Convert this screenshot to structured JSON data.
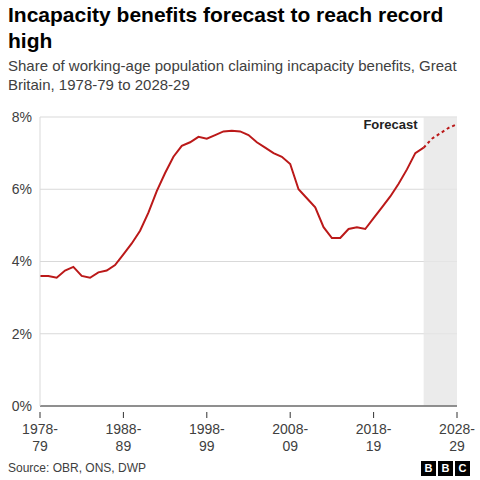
{
  "chart_data": {
    "type": "line",
    "title": "Incapacity benefits forecast to reach record high",
    "subtitle": "Share of working-age population claiming incapacity benefits, Great Britain, 1978-79 to 2028-29",
    "source": "Source: OBR, ONS, DWP",
    "branding": "BBC",
    "categories": [
      "1978-79",
      null,
      null,
      null,
      null,
      null,
      null,
      null,
      null,
      null,
      "1988-89",
      null,
      null,
      null,
      null,
      null,
      null,
      null,
      null,
      null,
      "1998-99",
      null,
      null,
      null,
      null,
      null,
      null,
      null,
      null,
      null,
      "2008-09",
      null,
      null,
      null,
      null,
      null,
      null,
      null,
      null,
      null,
      "2018-19",
      null,
      null,
      null,
      null,
      null,
      null,
      null,
      null,
      null,
      "2028-29"
    ],
    "series": [
      {
        "color": "#bb1919",
        "line_style": "solid",
        "values": [
          3.6,
          3.6,
          3.55,
          3.75,
          3.85,
          3.6,
          3.55,
          3.7,
          3.75,
          3.9,
          4.2,
          4.5,
          4.85,
          5.35,
          5.95,
          6.45,
          6.9,
          7.2,
          7.3,
          7.45,
          7.4,
          7.5,
          7.6,
          7.62,
          7.6,
          7.5,
          7.3,
          7.15,
          7.0,
          6.9,
          6.7,
          6.0,
          5.75,
          5.5,
          4.95,
          4.65,
          4.65,
          4.9,
          4.95,
          4.9,
          5.2,
          5.5,
          5.8,
          6.15,
          6.55,
          7.0,
          7.15,
          null,
          null,
          null,
          null
        ]
      },
      {
        "color": "#bb1919",
        "line_style": "dashed",
        "values": [
          null,
          null,
          null,
          null,
          null,
          null,
          null,
          null,
          null,
          null,
          null,
          null,
          null,
          null,
          null,
          null,
          null,
          null,
          null,
          null,
          null,
          null,
          null,
          null,
          null,
          null,
          null,
          null,
          null,
          null,
          null,
          null,
          null,
          null,
          null,
          null,
          null,
          null,
          null,
          null,
          null,
          null,
          null,
          null,
          null,
          null,
          7.15,
          7.4,
          7.55,
          7.7,
          7.8
        ]
      }
    ],
    "ylim": [
      0,
      8
    ],
    "yticks": [
      {
        "value": 0,
        "label": "0%"
      },
      {
        "value": 2,
        "label": "2%"
      },
      {
        "value": 4,
        "label": "4%"
      },
      {
        "value": 6,
        "label": "6%"
      },
      {
        "value": 8,
        "label": "8%"
      }
    ],
    "grid": true,
    "annotations": [
      {
        "text": "Forecast",
        "x_start": 46,
        "x_end": 50
      }
    ]
  }
}
